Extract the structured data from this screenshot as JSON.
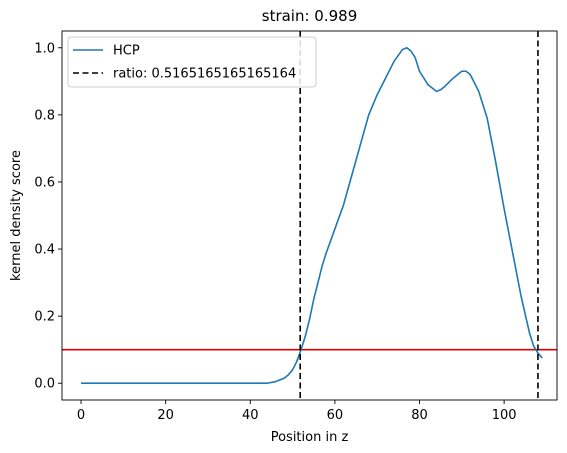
{
  "chart_data": {
    "type": "line",
    "title": "strain: 0.989",
    "xlabel": "Position in z",
    "ylabel": "kernel density score",
    "xlim": [
      -4.5,
      112.5
    ],
    "ylim": [
      -0.05,
      1.05
    ],
    "xticks": [
      0,
      20,
      40,
      60,
      80,
      100
    ],
    "yticks": [
      0.0,
      0.2,
      0.4,
      0.6,
      0.8,
      1.0
    ],
    "xtick_labels": [
      "0",
      "20",
      "40",
      "60",
      "80",
      "100"
    ],
    "ytick_labels": [
      "0.0",
      "0.2",
      "0.4",
      "0.6",
      "0.8",
      "1.0"
    ],
    "grid": false,
    "legend_position": "top-left",
    "series": [
      {
        "name": "HCP",
        "color": "#1f77b4",
        "style": "solid",
        "x": [
          0,
          10,
          20,
          30,
          40,
          44,
          46,
          47,
          48,
          49,
          50,
          51,
          52,
          53,
          54,
          55,
          56,
          57,
          58,
          60,
          62,
          64,
          66,
          68,
          70,
          72,
          74,
          76,
          77,
          78,
          79,
          80,
          82,
          84,
          85,
          86,
          88,
          90,
          91,
          92,
          94,
          96,
          98,
          100,
          102,
          104,
          106,
          107,
          108,
          109
        ],
        "y": [
          0.0,
          0.0,
          0.0,
          0.0,
          0.0,
          0.0,
          0.005,
          0.01,
          0.015,
          0.025,
          0.04,
          0.065,
          0.1,
          0.14,
          0.19,
          0.25,
          0.3,
          0.35,
          0.39,
          0.46,
          0.53,
          0.62,
          0.71,
          0.8,
          0.86,
          0.91,
          0.96,
          0.995,
          1.0,
          0.99,
          0.97,
          0.93,
          0.89,
          0.87,
          0.875,
          0.885,
          0.91,
          0.93,
          0.93,
          0.92,
          0.87,
          0.79,
          0.66,
          0.52,
          0.39,
          0.26,
          0.15,
          0.11,
          0.09,
          0.075
        ]
      },
      {
        "name": "ratio: 0.5165165165165164",
        "color": "#000000",
        "style": "dashed",
        "type": "vline",
        "x_values": [
          51.8,
          108.0
        ]
      }
    ],
    "hlines": [
      {
        "y": 0.1,
        "color": "#e00000"
      }
    ]
  }
}
